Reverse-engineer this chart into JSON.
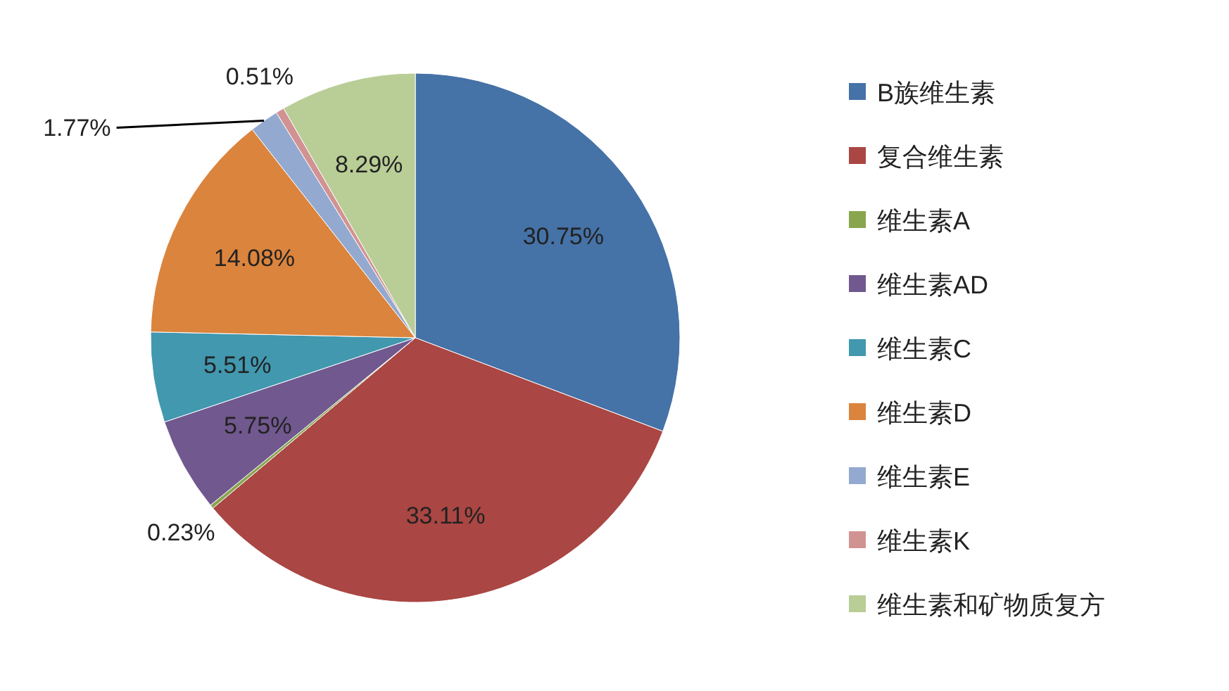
{
  "chart_data": {
    "type": "pie",
    "categories": [
      "B族维生素",
      "复合维生素",
      "维生素A",
      "维生素AD",
      "维生素C",
      "维生素D",
      "维生素E",
      "维生素K",
      "维生素和矿物质复方"
    ],
    "values": [
      30.75,
      33.11,
      0.23,
      5.75,
      5.51,
      14.08,
      1.77,
      0.51,
      8.29
    ],
    "value_labels": [
      "30.75%",
      "33.11%",
      "0.23%",
      "5.75%",
      "5.51%",
      "14.08%",
      "1.77%",
      "0.51%",
      "8.29%"
    ],
    "colors": [
      "#4572a7",
      "#aa4643",
      "#89a54e",
      "#71588f",
      "#4198af",
      "#db843d",
      "#93a9cf",
      "#d19392",
      "#b9cd96"
    ],
    "legend": "right"
  }
}
